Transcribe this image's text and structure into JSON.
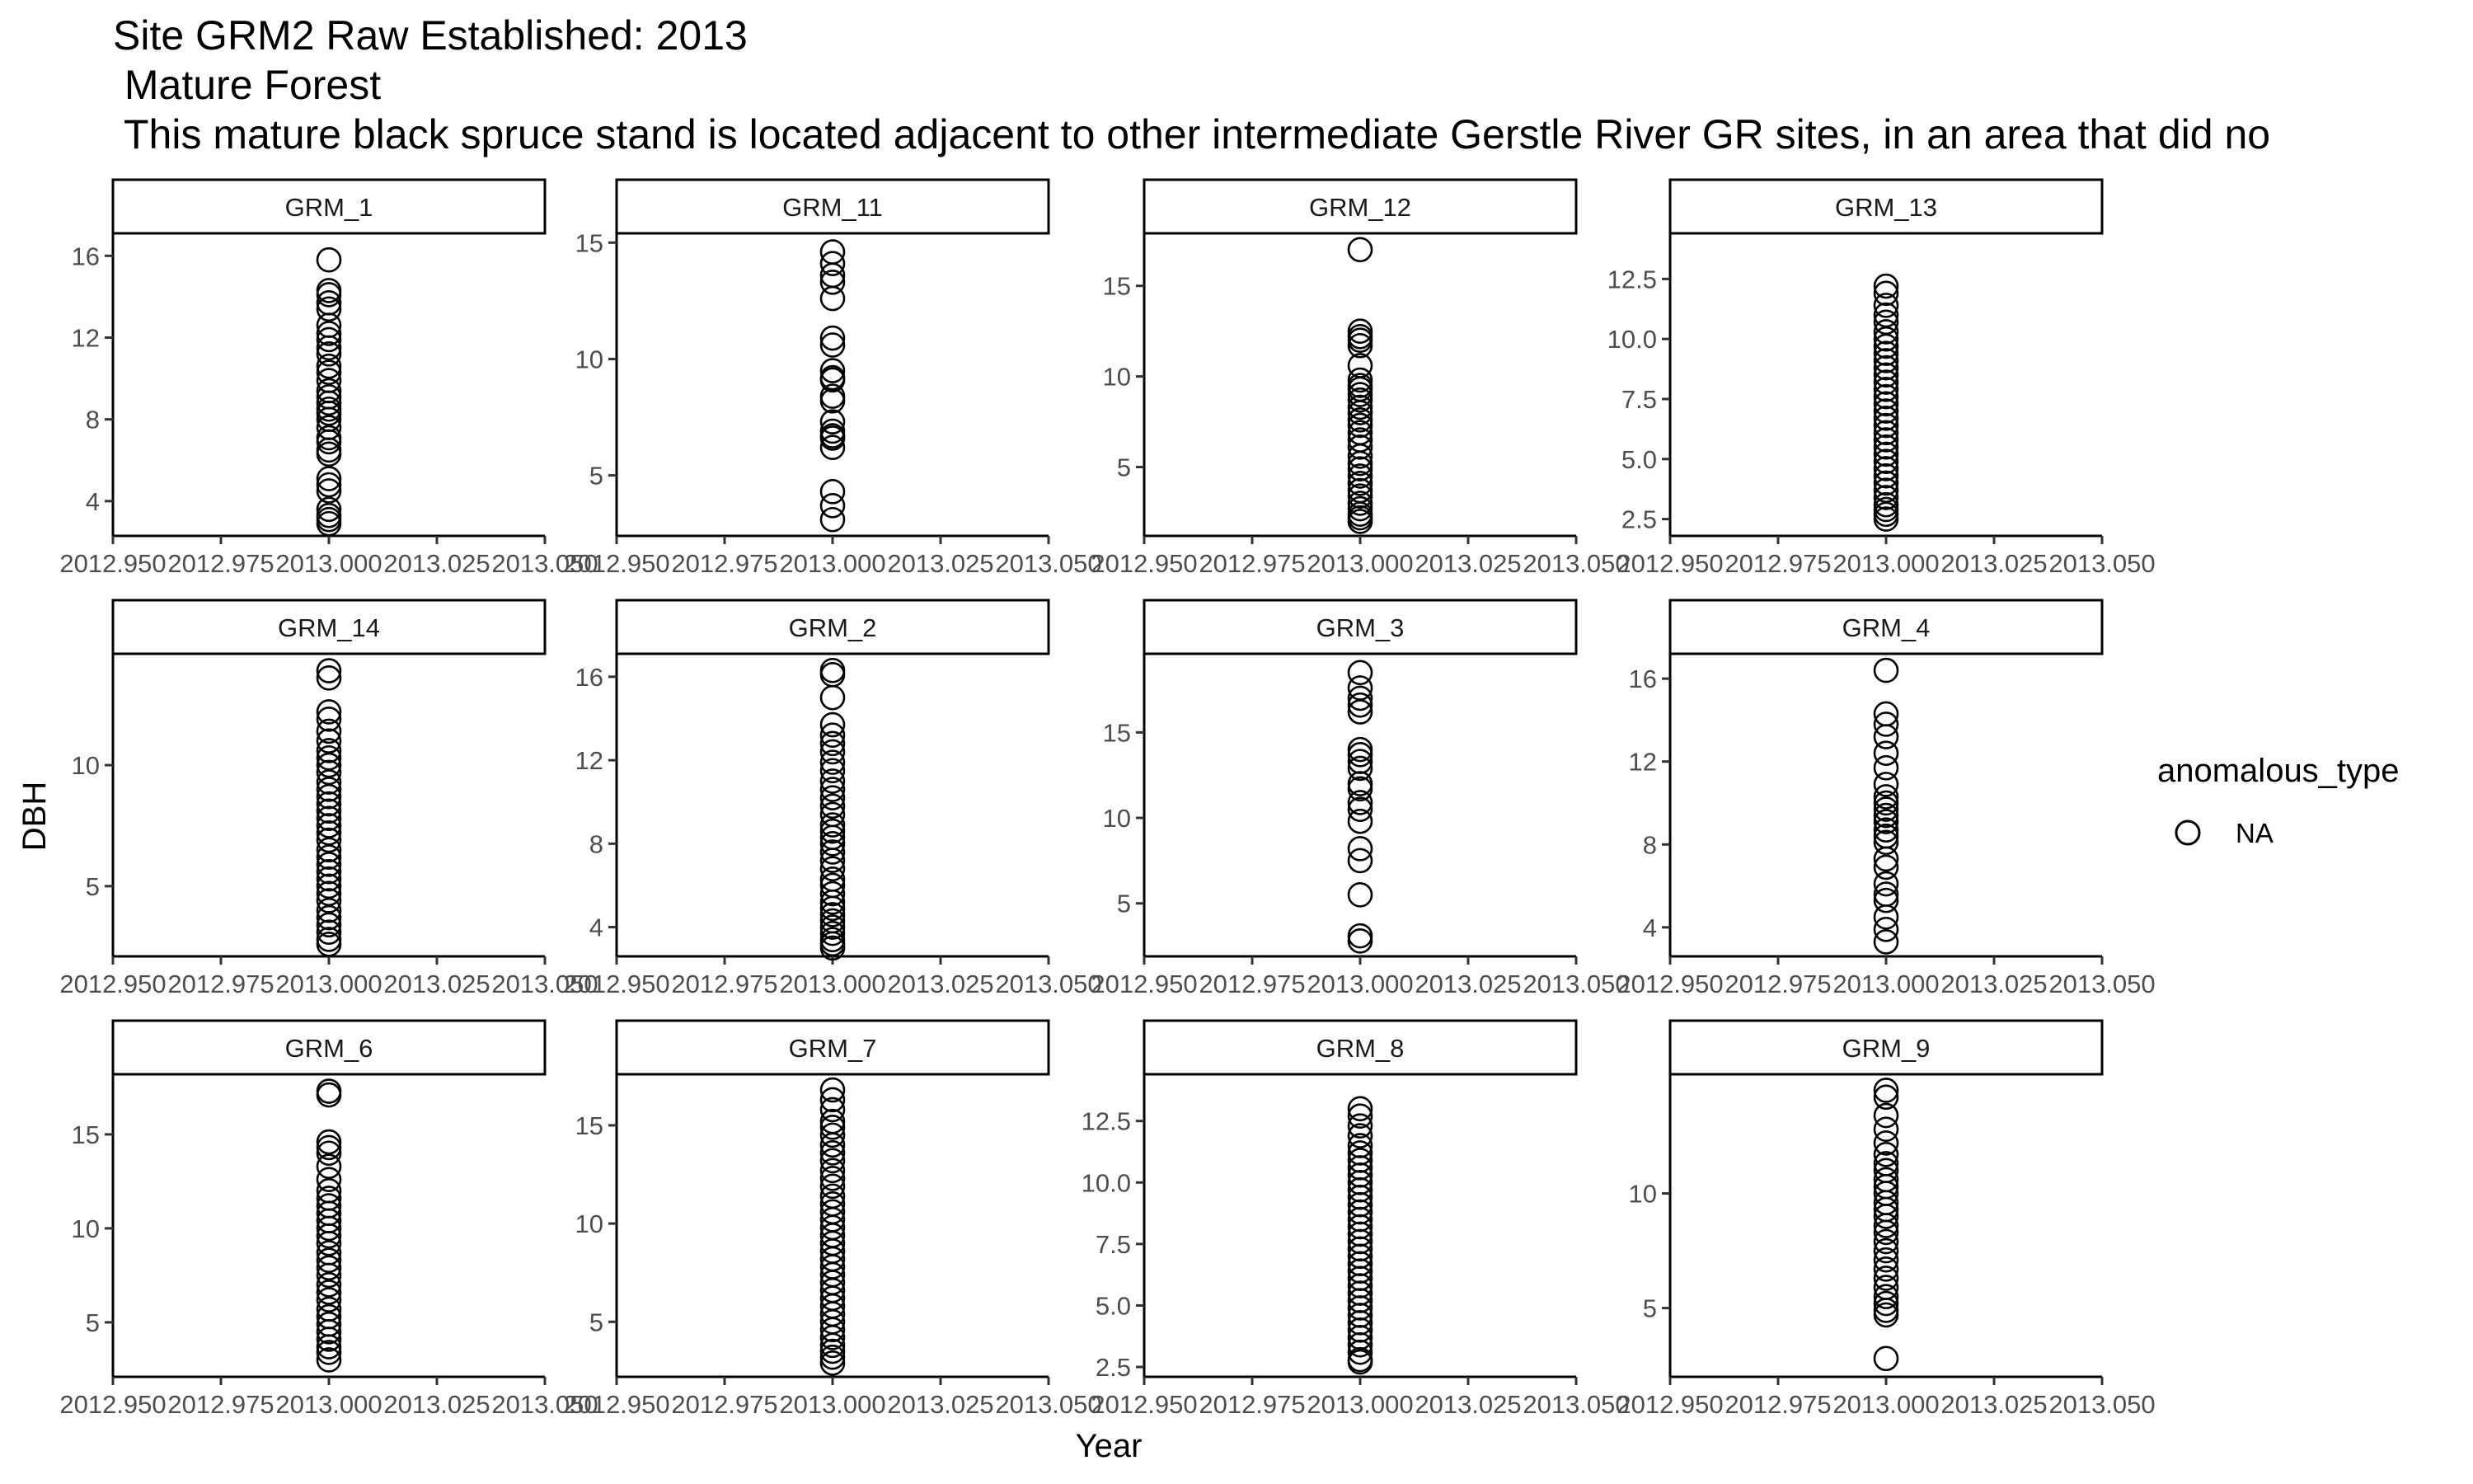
{
  "chart_data": {
    "type": "scatter",
    "title_lines": [
      "Site GRM2 Raw Established: 2013",
      " Mature Forest",
      " This mature black spruce stand is located adjacent to other intermediate Gerstle River GR sites, in an area that did no"
    ],
    "xlabel": "Year",
    "ylabel": "DBH",
    "x_ticks": [
      2012.95,
      2012.975,
      2013.0,
      2013.025,
      2013.05
    ],
    "x_tick_labels": [
      "2012.950",
      "2012.975",
      "2013.000",
      "2013.025",
      "2013.050"
    ],
    "xlim": [
      2012.95,
      2013.05
    ],
    "legend": {
      "title": "anomalous_type",
      "position": "right",
      "entries": [
        {
          "label": "NA",
          "marker": "open-circle"
        }
      ]
    },
    "marker": {
      "shape": "open-circle",
      "color": "#000000"
    },
    "grid": false,
    "facets": [
      {
        "name": "GRM_1",
        "ylim": [
          2.3,
          17.1
        ],
        "y_ticks": [
          4,
          8,
          12,
          16
        ],
        "y_tick_labels": [
          "4",
          "8",
          "12",
          "16"
        ],
        "x": 2013.0,
        "y": [
          15.8,
          14.3,
          14.1,
          13.7,
          13.4,
          12.6,
          12.2,
          11.9,
          11.5,
          11.2,
          10.6,
          10.3,
          9.9,
          9.4,
          9.1,
          8.8,
          8.5,
          8.3,
          8.0,
          7.6,
          7.1,
          6.9,
          6.5,
          6.3,
          5.1,
          4.8,
          4.5,
          3.6,
          3.3,
          3.1,
          2.9
        ]
      },
      {
        "name": "GRM_11",
        "ylim": [
          2.4,
          15.4
        ],
        "y_ticks": [
          5,
          10,
          15
        ],
        "y_tick_labels": [
          "5",
          "10",
          "15"
        ],
        "x": 2013.0,
        "y": [
          14.6,
          14.1,
          13.6,
          13.3,
          12.6,
          10.9,
          10.6,
          9.5,
          9.2,
          9.1,
          8.4,
          8.2,
          7.3,
          6.9,
          6.7,
          6.6,
          6.2,
          4.3,
          3.7,
          3.1
        ]
      },
      {
        "name": "GRM_12",
        "ylim": [
          1.2,
          17.9
        ],
        "y_ticks": [
          5,
          10,
          15
        ],
        "y_tick_labels": [
          "5",
          "10",
          "15"
        ],
        "x": 2013.0,
        "y": [
          17.0,
          12.5,
          12.2,
          12.0,
          11.7,
          10.6,
          9.8,
          9.5,
          9.3,
          9.0,
          8.7,
          8.3,
          8.0,
          7.6,
          7.3,
          6.9,
          6.5,
          6.1,
          5.6,
          5.2,
          4.9,
          4.5,
          4.1,
          3.7,
          3.4,
          3.0,
          2.7,
          2.4,
          2.2,
          2.0
        ]
      },
      {
        "name": "GRM_13",
        "ylim": [
          1.8,
          14.4
        ],
        "y_ticks": [
          2.5,
          5.0,
          7.5,
          10.0,
          12.5
        ],
        "y_tick_labels": [
          "2.5",
          "5.0",
          "7.5",
          "10.0",
          "12.5"
        ],
        "x": 2013.0,
        "y": [
          12.2,
          11.9,
          11.4,
          11.0,
          10.7,
          10.3,
          10.0,
          9.7,
          9.4,
          9.1,
          8.8,
          8.5,
          8.2,
          7.9,
          7.6,
          7.3,
          7.0,
          6.7,
          6.4,
          6.1,
          5.8,
          5.5,
          5.2,
          4.9,
          4.6,
          4.3,
          4.0,
          3.7,
          3.4,
          3.1,
          2.9,
          2.7,
          2.5
        ]
      },
      {
        "name": "GRM_14",
        "ylim": [
          2.1,
          14.6
        ],
        "y_ticks": [
          5,
          10
        ],
        "y_tick_labels": [
          "5",
          "10"
        ],
        "x": 2013.0,
        "y": [
          13.9,
          13.6,
          12.2,
          11.9,
          11.4,
          11.0,
          10.6,
          10.3,
          10.0,
          9.7,
          9.3,
          9.0,
          8.7,
          8.4,
          8.1,
          7.8,
          7.5,
          7.2,
          6.9,
          6.5,
          6.2,
          5.9,
          5.6,
          5.3,
          5.0,
          4.7,
          4.4,
          4.0,
          3.7,
          3.4,
          3.1,
          2.8,
          2.6
        ]
      },
      {
        "name": "GRM_2",
        "ylim": [
          2.6,
          17.1
        ],
        "y_ticks": [
          4,
          8,
          12,
          16
        ],
        "y_tick_labels": [
          "4",
          "8",
          "12",
          "16"
        ],
        "x": 2013.0,
        "y": [
          16.3,
          16.1,
          15.0,
          13.7,
          13.2,
          12.8,
          12.4,
          11.9,
          11.5,
          11.0,
          10.6,
          10.2,
          9.8,
          9.4,
          8.9,
          8.6,
          8.3,
          8.0,
          7.6,
          7.2,
          6.8,
          6.3,
          6.0,
          5.6,
          5.2,
          4.9,
          4.6,
          4.3,
          4.0,
          3.7,
          3.4,
          3.2,
          3.0
        ]
      },
      {
        "name": "GRM_3",
        "ylim": [
          1.9,
          19.6
        ],
        "y_ticks": [
          5,
          10,
          15
        ],
        "y_tick_labels": [
          "5",
          "10",
          "15"
        ],
        "x": 2013.0,
        "y": [
          18.5,
          17.6,
          17.0,
          16.6,
          16.2,
          14.0,
          13.7,
          13.3,
          12.9,
          12.0,
          11.7,
          10.9,
          10.5,
          9.8,
          8.2,
          7.5,
          5.5,
          3.1,
          2.8
        ]
      },
      {
        "name": "GRM_4",
        "ylim": [
          2.6,
          17.2
        ],
        "y_ticks": [
          4,
          8,
          12,
          16
        ],
        "y_tick_labels": [
          "4",
          "8",
          "12",
          "16"
        ],
        "x": 2013.0,
        "y": [
          16.4,
          14.3,
          13.8,
          13.2,
          12.4,
          11.7,
          10.9,
          10.3,
          10.0,
          9.7,
          9.4,
          9.1,
          8.7,
          8.4,
          8.1,
          7.3,
          6.9,
          6.1,
          5.6,
          5.3,
          4.5,
          3.9,
          3.3
        ]
      },
      {
        "name": "GRM_6",
        "ylim": [
          2.1,
          18.2
        ],
        "y_ticks": [
          5,
          10,
          15
        ],
        "y_tick_labels": [
          "5",
          "10",
          "15"
        ],
        "x": 2013.0,
        "y": [
          17.3,
          17.1,
          14.6,
          14.3,
          14.0,
          13.3,
          12.6,
          12.0,
          11.6,
          11.2,
          10.8,
          10.4,
          10.0,
          9.6,
          9.2,
          8.7,
          8.3,
          7.9,
          7.5,
          7.0,
          6.6,
          6.2,
          5.7,
          5.3,
          4.9,
          4.5,
          4.1,
          3.7,
          3.4,
          3.0
        ]
      },
      {
        "name": "GRM_7",
        "ylim": [
          2.2,
          17.6
        ],
        "y_ticks": [
          5,
          10,
          15
        ],
        "y_tick_labels": [
          "5",
          "10",
          "15"
        ],
        "x": 2013.0,
        "y": [
          16.8,
          16.3,
          15.8,
          15.2,
          14.9,
          14.5,
          14.0,
          13.6,
          13.2,
          12.7,
          12.3,
          11.9,
          11.4,
          11.0,
          10.6,
          10.2,
          9.8,
          9.4,
          9.0,
          8.6,
          8.2,
          7.8,
          7.4,
          7.0,
          6.6,
          6.2,
          5.8,
          5.4,
          5.0,
          4.6,
          4.2,
          3.8,
          3.5,
          3.2,
          2.9
        ]
      },
      {
        "name": "GRM_8",
        "ylim": [
          2.1,
          14.4
        ],
        "y_ticks": [
          2.5,
          5.0,
          7.5,
          10.0,
          12.5
        ],
        "y_tick_labels": [
          "2.5",
          "5.0",
          "7.5",
          "10.0",
          "12.5"
        ],
        "x": 2013.0,
        "y": [
          13.0,
          12.7,
          12.3,
          11.9,
          11.5,
          11.2,
          10.9,
          10.6,
          10.3,
          10.0,
          9.7,
          9.4,
          9.1,
          8.8,
          8.5,
          8.2,
          7.9,
          7.6,
          7.3,
          7.0,
          6.7,
          6.4,
          6.1,
          5.8,
          5.5,
          5.2,
          4.9,
          4.6,
          4.3,
          4.0,
          3.7,
          3.4,
          3.1,
          2.8,
          2.7
        ]
      },
      {
        "name": "GRM_9",
        "ylim": [
          2.0,
          15.2
        ],
        "y_ticks": [
          5,
          10
        ],
        "y_tick_labels": [
          "5",
          "10"
        ],
        "x": 2013.0,
        "y": [
          14.5,
          14.2,
          13.4,
          12.8,
          12.2,
          11.7,
          11.3,
          11.0,
          10.6,
          10.3,
          10.0,
          9.6,
          9.3,
          9.0,
          8.6,
          8.3,
          7.9,
          7.5,
          7.1,
          6.7,
          6.3,
          5.9,
          5.5,
          5.2,
          4.9,
          4.7,
          2.8
        ]
      }
    ]
  }
}
